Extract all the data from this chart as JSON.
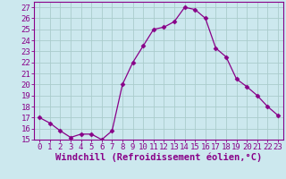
{
  "x": [
    0,
    1,
    2,
    3,
    4,
    5,
    6,
    7,
    8,
    9,
    10,
    11,
    12,
    13,
    14,
    15,
    16,
    17,
    18,
    19,
    20,
    21,
    22,
    23
  ],
  "y": [
    17,
    16.5,
    15.8,
    15.2,
    15.5,
    15.5,
    15.0,
    15.8,
    20.0,
    22.0,
    23.5,
    25.0,
    25.2,
    25.7,
    27.0,
    26.8,
    26.0,
    23.3,
    22.5,
    20.5,
    19.8,
    19.0,
    18.0,
    17.2
  ],
  "line_color": "#880088",
  "marker": "D",
  "marker_size": 2.5,
  "bg_color": "#cce8ee",
  "grid_color": "#aacccc",
  "xlabel": "Windchill (Refroidissement éolien,°C)",
  "xlim": [
    -0.5,
    23.5
  ],
  "ylim": [
    15,
    27.5
  ],
  "xticks": [
    0,
    1,
    2,
    3,
    4,
    5,
    6,
    7,
    8,
    9,
    10,
    11,
    12,
    13,
    14,
    15,
    16,
    17,
    18,
    19,
    20,
    21,
    22,
    23
  ],
  "yticks": [
    15,
    16,
    17,
    18,
    19,
    20,
    21,
    22,
    23,
    24,
    25,
    26,
    27
  ],
  "tick_fontsize": 6.5,
  "label_fontsize": 7.5
}
